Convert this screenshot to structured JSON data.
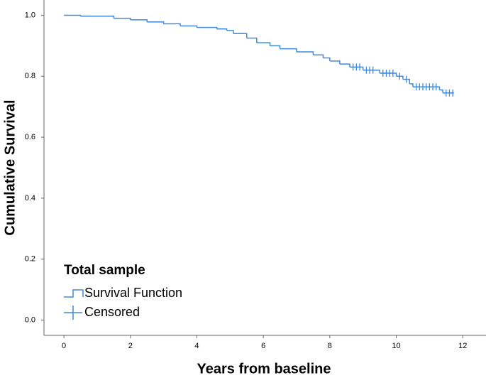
{
  "chart_data": {
    "type": "survival",
    "x_label": "Years from baseline",
    "y_label": "Cumulative Survival",
    "legend_title": "Total sample",
    "xlim": [
      -0.6,
      12.7
    ],
    "ylim": [
      -0.05,
      1.05
    ],
    "xticks": [
      0,
      2,
      4,
      6,
      8,
      10,
      12
    ],
    "yticks": [
      {
        "value": 0,
        "label": "0.0"
      },
      0.2,
      0.4,
      0.6,
      0.8,
      {
        "value": 1,
        "label": "1.0"
      }
    ],
    "series": [
      {
        "name": "Survival Function",
        "color": "#4189dc",
        "x": [
          0,
          0.5,
          1.5,
          2.0,
          2.5,
          3.0,
          3.5,
          4.0,
          4.6,
          4.9,
          5.1,
          5.5,
          5.8,
          6.2,
          6.5,
          7.0,
          7.5,
          7.8,
          8.0,
          8.3,
          8.6,
          9.0,
          9.5,
          10.0,
          10.2,
          10.4,
          10.5,
          11.3,
          11.4,
          11.7
        ],
        "values": [
          1.0,
          0.997,
          0.99,
          0.985,
          0.978,
          0.972,
          0.965,
          0.96,
          0.955,
          0.95,
          0.94,
          0.925,
          0.91,
          0.9,
          0.89,
          0.88,
          0.87,
          0.86,
          0.85,
          0.84,
          0.83,
          0.82,
          0.81,
          0.8,
          0.79,
          0.775,
          0.765,
          0.755,
          0.745,
          0.745
        ]
      },
      {
        "name": "Censored",
        "color": "#4189dc",
        "x": [
          8.7,
          8.8,
          8.9,
          9.1,
          9.2,
          9.3,
          9.6,
          9.7,
          9.8,
          9.9,
          10.1,
          10.3,
          10.6,
          10.7,
          10.8,
          10.9,
          11.0,
          11.1,
          11.2,
          11.5,
          11.6,
          11.7
        ],
        "values": [
          0.83,
          0.83,
          0.83,
          0.82,
          0.82,
          0.82,
          0.81,
          0.81,
          0.81,
          0.81,
          0.8,
          0.79,
          0.765,
          0.765,
          0.765,
          0.765,
          0.765,
          0.765,
          0.765,
          0.745,
          0.745,
          0.745
        ]
      }
    ]
  }
}
